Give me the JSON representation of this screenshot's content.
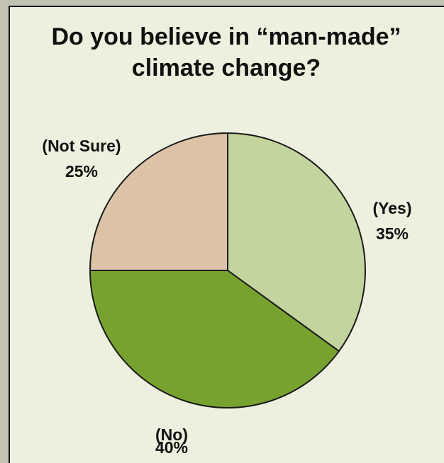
{
  "title_lines": [
    "Do you believe in “man-made”",
    "climate change?"
  ],
  "chart_data": {
    "type": "pie",
    "title": "Do you believe in “man-made” climate change?",
    "slices": [
      {
        "label": "(Yes)",
        "value": 35,
        "value_label": "35%",
        "color": "#c3d49e"
      },
      {
        "label": "(No)",
        "value": 40,
        "value_label": "40%",
        "color": "#77a22f"
      },
      {
        "label": "(Not Sure)",
        "value": 25,
        "value_label": "25%",
        "color": "#dcc3a8"
      }
    ],
    "start": "12 o'clock",
    "direction": "clockwise",
    "edge_color": "#1a1a1a"
  }
}
